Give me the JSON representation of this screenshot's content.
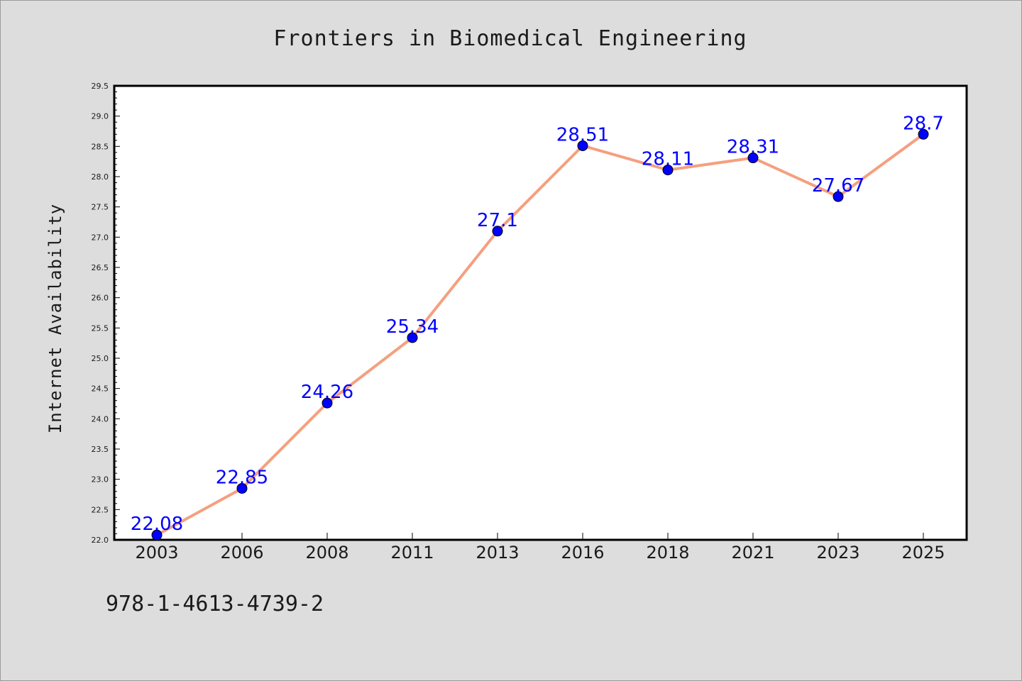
{
  "chart_data": {
    "type": "line",
    "title": "Frontiers in Biomedical Engineering",
    "xlabel": "",
    "ylabel": "Internet Availability",
    "categories": [
      "2003",
      "2006",
      "2008",
      "2011",
      "2013",
      "2016",
      "2018",
      "2021",
      "2023",
      "2025"
    ],
    "series": [
      {
        "values": [
          22.08,
          22.85,
          24.26,
          25.34,
          27.1,
          28.51,
          28.11,
          28.31,
          27.67,
          28.7
        ],
        "labels": [
          "22.08",
          "22.85",
          "24.26",
          "25.34",
          "27.1",
          "28.51",
          "28.11",
          "28.31",
          "27.67",
          "28.7"
        ],
        "line_color": "#f4a07f",
        "marker_color": "#0000ff"
      }
    ],
    "ylim": [
      22.0,
      29.5
    ],
    "yticks": [
      "22.0",
      "22.5",
      "23.0",
      "23.5",
      "24.0",
      "24.5",
      "25.0",
      "25.5",
      "26.0",
      "26.5",
      "27.0",
      "27.5",
      "28.0",
      "28.5",
      "29.0",
      "29.5"
    ],
    "grid": false,
    "legend": "none"
  },
  "footer": {
    "isbn": "978-1-4613-4739-2"
  },
  "colors": {
    "background": "#dddddd",
    "plot_background": "#ffffff",
    "axis": "#000000",
    "data_label": "#0000ff"
  }
}
